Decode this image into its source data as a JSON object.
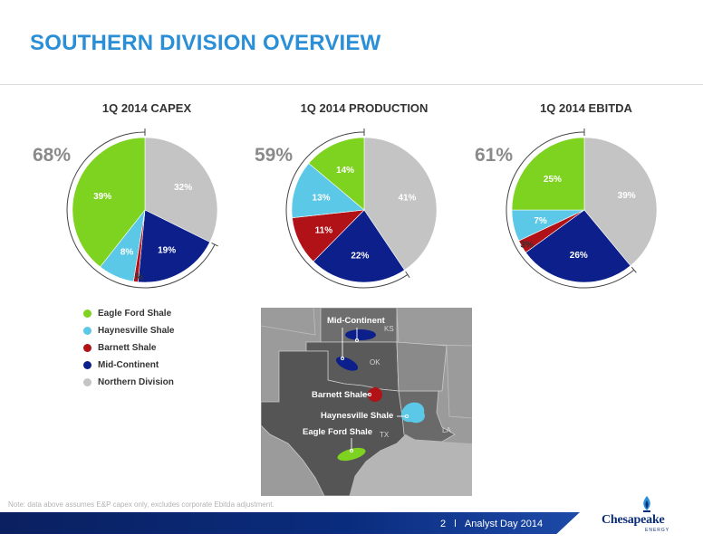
{
  "page": {
    "title": "SOUTHERN DIVISION OVERVIEW"
  },
  "colors": {
    "eagle_ford": "#7ed321",
    "haynesville": "#5cc8e8",
    "barnett": "#b01217",
    "mid_continent": "#0c1f8a",
    "northern": "#c4c4c4"
  },
  "chart_data": [
    {
      "type": "pie",
      "title": "1Q 2014 CAPEX",
      "southern_share_label": "68%",
      "slices": [
        {
          "name": "Northern Division",
          "value": 32,
          "label": "32%"
        },
        {
          "name": "Mid-Continent",
          "value": 19,
          "label": "19%"
        },
        {
          "name": "Barnett Shale",
          "value": 1,
          "label": "1%"
        },
        {
          "name": "Haynesville Shale",
          "value": 8,
          "label": "8%"
        },
        {
          "name": "Eagle Ford Shale",
          "value": 39,
          "label": "39%"
        }
      ]
    },
    {
      "type": "pie",
      "title": "1Q 2014 PRODUCTION",
      "southern_share_label": "59%",
      "slices": [
        {
          "name": "Northern Division",
          "value": 41,
          "label": "41%"
        },
        {
          "name": "Mid-Continent",
          "value": 22,
          "label": "22%"
        },
        {
          "name": "Barnett Shale",
          "value": 11,
          "label": "11%"
        },
        {
          "name": "Haynesville Shale",
          "value": 13,
          "label": "13%"
        },
        {
          "name": "Eagle Ford Shale",
          "value": 14,
          "label": "14%"
        }
      ]
    },
    {
      "type": "pie",
      "title": "1Q 2014 EBITDA",
      "southern_share_label": "61%",
      "slices": [
        {
          "name": "Northern Division",
          "value": 39,
          "label": "39%"
        },
        {
          "name": "Mid-Continent",
          "value": 26,
          "label": "26%"
        },
        {
          "name": "Barnett Shale",
          "value": 3,
          "label": "3%"
        },
        {
          "name": "Haynesville Shale",
          "value": 7,
          "label": "7%"
        },
        {
          "name": "Eagle Ford Shale",
          "value": 25,
          "label": "25%"
        }
      ]
    }
  ],
  "legend": [
    {
      "label": "Eagle Ford Shale",
      "color": "#7ed321"
    },
    {
      "label": "Haynesville Shale",
      "color": "#5cc8e8"
    },
    {
      "label": "Barnett Shale",
      "color": "#b01217"
    },
    {
      "label": "Mid-Continent",
      "color": "#0c1f8a"
    },
    {
      "label": "Northern Division",
      "color": "#c4c4c4"
    }
  ],
  "map": {
    "labels": {
      "mid_continent": "Mid-Continent",
      "barnett": "Barnett Shale",
      "haynesville": "Haynesville Shale",
      "eagle_ford": "Eagle Ford Shale"
    },
    "states": {
      "ks": "KS",
      "ok": "OK",
      "tx": "TX",
      "la": "LA"
    }
  },
  "note": "Note: data above assumes E&P capex only, excludes corporate Ebitda adjustment.",
  "footer": {
    "page_number": "2",
    "separator": "l",
    "event": "Analyst Day 2014"
  },
  "logo": {
    "name": "Chesapeake",
    "sub": "ENERGY"
  }
}
